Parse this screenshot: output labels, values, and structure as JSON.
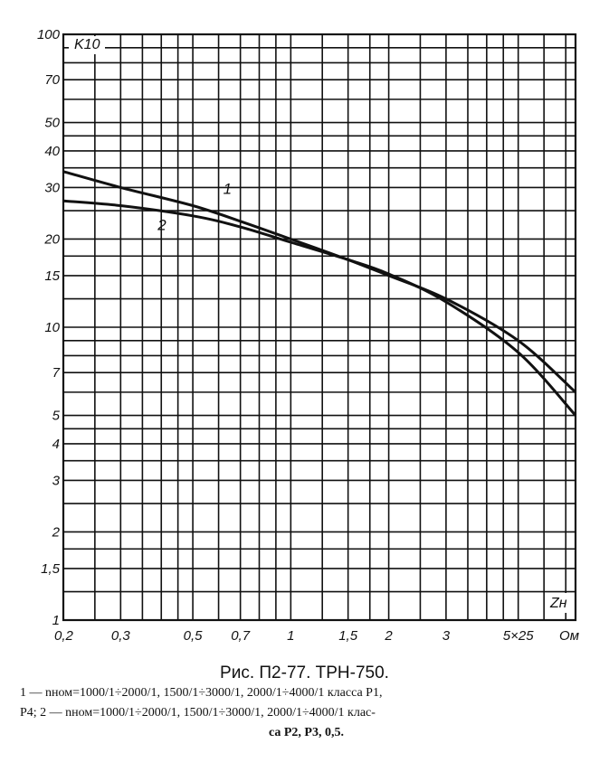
{
  "chart_data": {
    "type": "line",
    "title": "",
    "x_scale": "log",
    "y_scale": "log",
    "xlim": [
      0.2,
      7.5
    ],
    "ylim": [
      1,
      100
    ],
    "x_ticks": [
      0.2,
      0.3,
      0.5,
      0.7,
      1,
      1.5,
      2,
      3,
      5,
      7
    ],
    "x_tick_labels": [
      "0,2",
      "0,3",
      "0,5",
      "0,7",
      "1",
      "1,5",
      "2",
      "3",
      "5×25",
      "Ом"
    ],
    "y_ticks": [
      1,
      1.5,
      2,
      3,
      4,
      5,
      7,
      10,
      15,
      20,
      30,
      40,
      50,
      70,
      100
    ],
    "y_tick_labels": [
      "1",
      "1,5",
      "2",
      "3",
      "4",
      "5",
      "7",
      "10",
      "15",
      "20",
      "30",
      "40",
      "50",
      "70",
      "100"
    ],
    "xlabel": "Zн",
    "ylabel": "K10",
    "grid": true,
    "series": [
      {
        "name": "1",
        "x": [
          0.2,
          0.3,
          0.5,
          0.7,
          1,
          1.5,
          2,
          3,
          5,
          7.5
        ],
        "y": [
          34,
          30,
          26,
          23,
          20,
          17,
          15,
          12.5,
          9,
          6
        ]
      },
      {
        "name": "2",
        "x": [
          0.2,
          0.3,
          0.5,
          0.7,
          1,
          1.5,
          2,
          3,
          5,
          7.5
        ],
        "y": [
          27,
          26,
          24,
          22,
          19.5,
          17,
          15.2,
          12.2,
          8.2,
          5
        ]
      }
    ]
  },
  "caption": {
    "title": "Рис. П2-77. ТРН-750.",
    "note_line1": "1 — nном=1000/1÷2000/1, 1500/1÷3000/1, 2000/1÷4000/1 класса P1,",
    "note_line2": "P4; 2 — nном=1000/1÷2000/1, 1500/1÷3000/1, 2000/1÷4000/1 клас-",
    "note_line3": "са P2, P3, 0,5."
  }
}
